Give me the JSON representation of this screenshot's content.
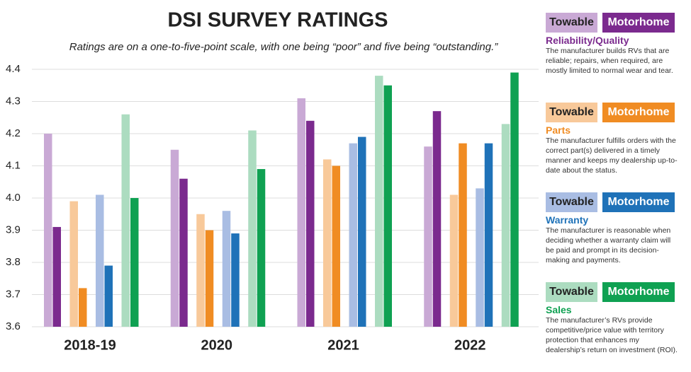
{
  "chart_data": {
    "type": "bar",
    "title": "DSI SURVEY RATINGS",
    "subtitle": "Ratings are on a one-to-five-point scale, with one being “poor” and five being “outstanding.”",
    "categories": [
      "2018-19",
      "2020",
      "2021",
      "2022"
    ],
    "ylim": [
      3.6,
      4.4
    ],
    "yticks": [
      3.6,
      3.7,
      3.8,
      3.9,
      {
        "value": 4,
        "label": "4.0"
      },
      4.1,
      4.2,
      4.3,
      4.4
    ],
    "grid": true,
    "series": [
      {
        "name": "Towable",
        "color": "#c9a9d5",
        "values": [
          4.2,
          4.15,
          4.31,
          4.16
        ]
      },
      {
        "name": "Motorhome",
        "color": "#7b2a8e",
        "values": [
          3.91,
          4.06,
          4.24,
          4.27
        ]
      },
      {
        "name": "Towable",
        "color": "#f8c99a",
        "values": [
          3.99,
          3.95,
          4.12,
          4.01
        ]
      },
      {
        "name": "Motorhome",
        "color": "#f08c23",
        "values": [
          3.72,
          3.9,
          4.1,
          4.17
        ]
      },
      {
        "name": "Towable",
        "color": "#a9bde3",
        "values": [
          4.01,
          3.96,
          4.17,
          4.03
        ]
      },
      {
        "name": "Motorhome",
        "color": "#1f72b8",
        "values": [
          3.79,
          3.89,
          4.19,
          4.17
        ]
      },
      {
        "name": "Towable",
        "color": "#acdcc0",
        "values": [
          4.26,
          4.21,
          4.38,
          4.23
        ]
      },
      {
        "name": "Motorhome",
        "color": "#0fa152",
        "values": [
          4.0,
          4.09,
          4.35,
          4.39
        ]
      }
    ],
    "legend_groups": [
      {
        "title": "Reliability/Quality",
        "description": "The manufacturer builds RVs that are reliable; repairs, when required, are mostly limited to normal wear and tear."
      },
      {
        "title": "Parts",
        "description": "The manufacturer fulfills orders with the correct part(s) delivered in a timely manner and keeps my dealership up-to-date about the status."
      },
      {
        "title": "Warranty",
        "description": "The manufacturer is reasonable when deciding whether a warranty claim will be paid and prompt in its decision-making and payments."
      },
      {
        "title": "Sales",
        "description": "The manufacturer’s RVs provide competitive/price value with territory protection that enhances my dealership’s return on investment (ROI)."
      }
    ]
  }
}
